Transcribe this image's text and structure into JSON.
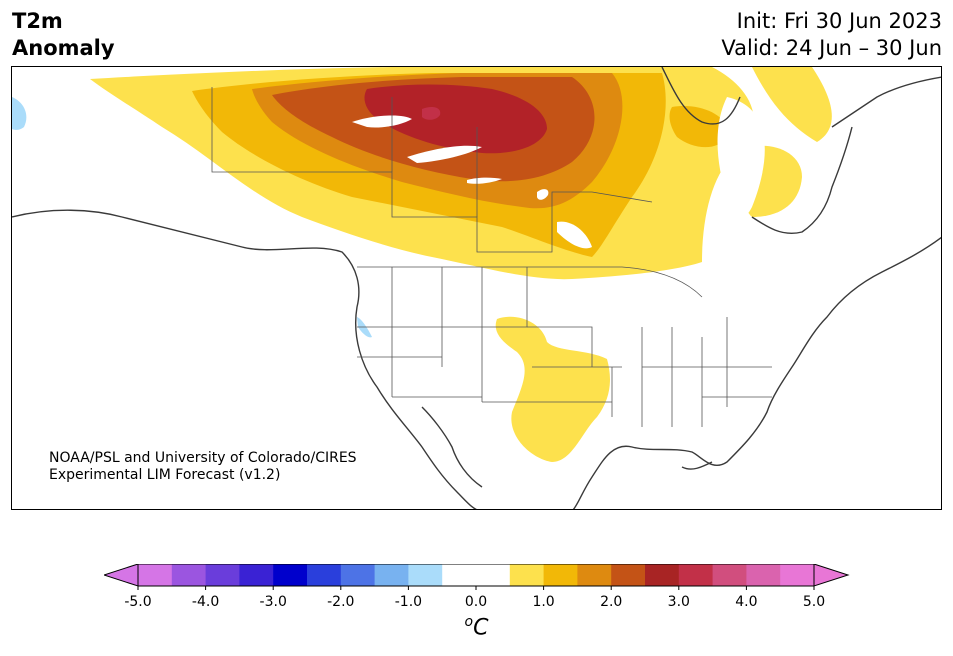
{
  "title": {
    "line1": "T2m",
    "line2": "Anomaly"
  },
  "header": {
    "init": "Init: Fri 30 Jun 2023",
    "valid": "Valid: 24 Jun – 30 Jun"
  },
  "credit": {
    "line1": "NOAA/PSL and University of Colorado/CIRES",
    "line2": "Experimental LIM Forecast (v1.2)"
  },
  "colorbar": {
    "unit_base": "C",
    "unit_sup": "o",
    "ticks": [
      "-5.0",
      "-4.0",
      "-3.0",
      "-2.0",
      "-1.0",
      "0.0",
      "1.0",
      "2.0",
      "3.0",
      "4.0",
      "5.0"
    ],
    "colors": [
      "#d575e6",
      "#9b55e0",
      "#6a3ddb",
      "#3a22d4",
      "#0000cc",
      "#2a3fdc",
      "#4d73e6",
      "#78b2f0",
      "#aadcfa",
      "#ffffff",
      "#ffffff",
      "#fde14d",
      "#f2b807",
      "#de8a10",
      "#c45316",
      "#a82424",
      "#c23048",
      "#d14e7e",
      "#da63ae",
      "#e876d6"
    ],
    "min_color": "#d575e6",
    "max_color": "#e876d6"
  },
  "anomaly_colors": {
    "c1": "#fde14d",
    "c2": "#f2b807",
    "c3": "#de8a10",
    "c4": "#c45316",
    "c5": "#b22228",
    "c6": "#c23048",
    "neg1": "#aadcfa"
  }
}
